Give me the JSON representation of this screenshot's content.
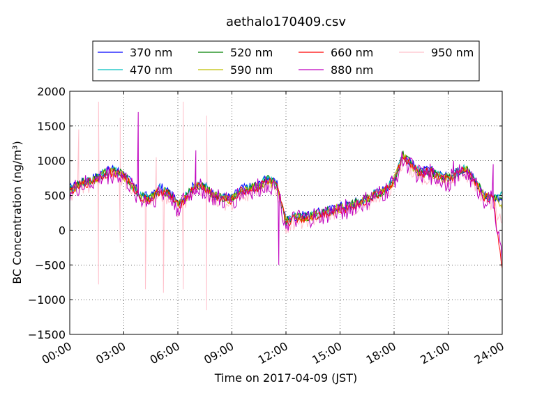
{
  "chart_data": {
    "type": "line",
    "title": "aethalo170409.csv",
    "xlabel": "Time on 2017-04-09 (JST)",
    "ylabel": "BC Concentration (ng/m³)",
    "xlim": [
      0,
      24
    ],
    "ylim": [
      -1500,
      2000
    ],
    "grid": true,
    "legend_position": "top-outside",
    "x_tick_labels": [
      "00:00",
      "03:00",
      "06:00",
      "09:00",
      "12:00",
      "15:00",
      "18:00",
      "21:00",
      "24:00"
    ],
    "y_ticks": [
      -1500,
      -1000,
      -500,
      0,
      500,
      1000,
      1500,
      2000
    ],
    "x_hours": [
      0,
      0.5,
      1,
      1.5,
      2,
      2.5,
      3,
      3.5,
      4,
      4.5,
      5,
      5.5,
      6,
      6.5,
      7,
      7.5,
      8,
      8.5,
      9,
      9.5,
      10,
      10.5,
      11,
      11.5,
      12,
      12.5,
      13,
      13.5,
      14,
      14.5,
      15,
      15.5,
      16,
      16.5,
      17,
      17.5,
      18,
      18.5,
      19,
      19.5,
      20,
      20.5,
      21,
      21.5,
      22,
      22.5,
      23,
      23.5,
      24
    ],
    "series": [
      {
        "name": "370 nm",
        "color": "#0000ff",
        "values": [
          600,
          680,
          720,
          780,
          850,
          880,
          820,
          650,
          500,
          480,
          620,
          560,
          380,
          520,
          680,
          640,
          520,
          480,
          470,
          600,
          620,
          660,
          750,
          650,
          150,
          200,
          210,
          240,
          260,
          300,
          350,
          370,
          420,
          470,
          540,
          600,
          750,
          1100,
          950,
          840,
          870,
          800,
          760,
          850,
          900,
          720,
          520,
          480,
          470
        ]
      },
      {
        "name": "470 nm",
        "color": "#00bfbf",
        "values": [
          590,
          670,
          710,
          770,
          840,
          860,
          810,
          640,
          490,
          470,
          600,
          550,
          370,
          510,
          660,
          630,
          510,
          470,
          460,
          590,
          610,
          650,
          740,
          640,
          140,
          190,
          200,
          230,
          250,
          290,
          340,
          360,
          410,
          460,
          530,
          590,
          740,
          1090,
          940,
          830,
          860,
          790,
          750,
          840,
          890,
          710,
          510,
          470,
          520
        ]
      },
      {
        "name": "520 nm",
        "color": "#008000",
        "values": [
          580,
          660,
          700,
          760,
          830,
          850,
          800,
          630,
          480,
          460,
          590,
          540,
          360,
          500,
          650,
          620,
          500,
          460,
          450,
          580,
          600,
          640,
          730,
          630,
          130,
          180,
          190,
          220,
          240,
          280,
          330,
          350,
          400,
          450,
          520,
          580,
          730,
          1080,
          930,
          820,
          850,
          780,
          740,
          830,
          880,
          700,
          500,
          460,
          480
        ]
      },
      {
        "name": "590 nm",
        "color": "#bfbf00",
        "values": [
          570,
          650,
          690,
          750,
          820,
          840,
          790,
          620,
          470,
          450,
          580,
          530,
          350,
          490,
          640,
          610,
          490,
          450,
          440,
          570,
          590,
          630,
          720,
          620,
          120,
          170,
          180,
          210,
          230,
          270,
          320,
          340,
          390,
          440,
          510,
          570,
          720,
          1070,
          920,
          810,
          840,
          770,
          730,
          820,
          870,
          690,
          490,
          450,
          300
        ]
      },
      {
        "name": "660 nm",
        "color": "#ff0000",
        "values": [
          560,
          640,
          680,
          740,
          810,
          830,
          780,
          610,
          460,
          440,
          570,
          520,
          340,
          480,
          630,
          600,
          480,
          440,
          430,
          560,
          580,
          620,
          710,
          610,
          110,
          160,
          170,
          200,
          220,
          260,
          310,
          330,
          380,
          430,
          500,
          560,
          710,
          1060,
          910,
          800,
          830,
          760,
          720,
          810,
          860,
          680,
          480,
          440,
          -550
        ]
      },
      {
        "name": "880 nm",
        "color": "#bf00bf",
        "values": [
          540,
          620,
          660,
          720,
          790,
          810,
          760,
          590,
          440,
          420,
          550,
          500,
          320,
          460,
          610,
          580,
          460,
          420,
          410,
          540,
          560,
          600,
          690,
          590,
          90,
          140,
          150,
          180,
          200,
          240,
          290,
          310,
          360,
          410,
          480,
          540,
          690,
          1040,
          890,
          780,
          810,
          740,
          700,
          790,
          840,
          660,
          460,
          420,
          -450
        ]
      },
      {
        "name": "950 nm",
        "color": "#ffc0cb",
        "values": [
          520,
          600,
          640,
          700,
          770,
          790,
          740,
          570,
          420,
          400,
          530,
          480,
          300,
          440,
          590,
          560,
          440,
          400,
          390,
          520,
          540,
          580,
          670,
          570,
          70,
          120,
          130,
          160,
          180,
          220,
          270,
          290,
          340,
          390,
          460,
          520,
          670,
          1020,
          870,
          760,
          790,
          720,
          680,
          770,
          820,
          640,
          440,
          400,
          100
        ]
      }
    ],
    "annotations": [
      {
        "series": "950 nm",
        "spikes": [
          [
            0.5,
            1450
          ],
          [
            1.6,
            1850
          ],
          [
            1.6,
            -780
          ],
          [
            2.8,
            1620
          ],
          [
            2.8,
            -180
          ],
          [
            4.2,
            -850
          ],
          [
            4.8,
            1050
          ],
          [
            5.2,
            -900
          ],
          [
            6.3,
            1850
          ],
          [
            6.3,
            -850
          ],
          [
            7.6,
            1650
          ],
          [
            7.6,
            -1150
          ]
        ]
      },
      {
        "series": "880 nm",
        "spikes": [
          [
            3.8,
            1700
          ],
          [
            7.0,
            1150
          ],
          [
            11.6,
            -500
          ],
          [
            21.3,
            1000
          ],
          [
            23.5,
            950
          ]
        ]
      }
    ]
  }
}
